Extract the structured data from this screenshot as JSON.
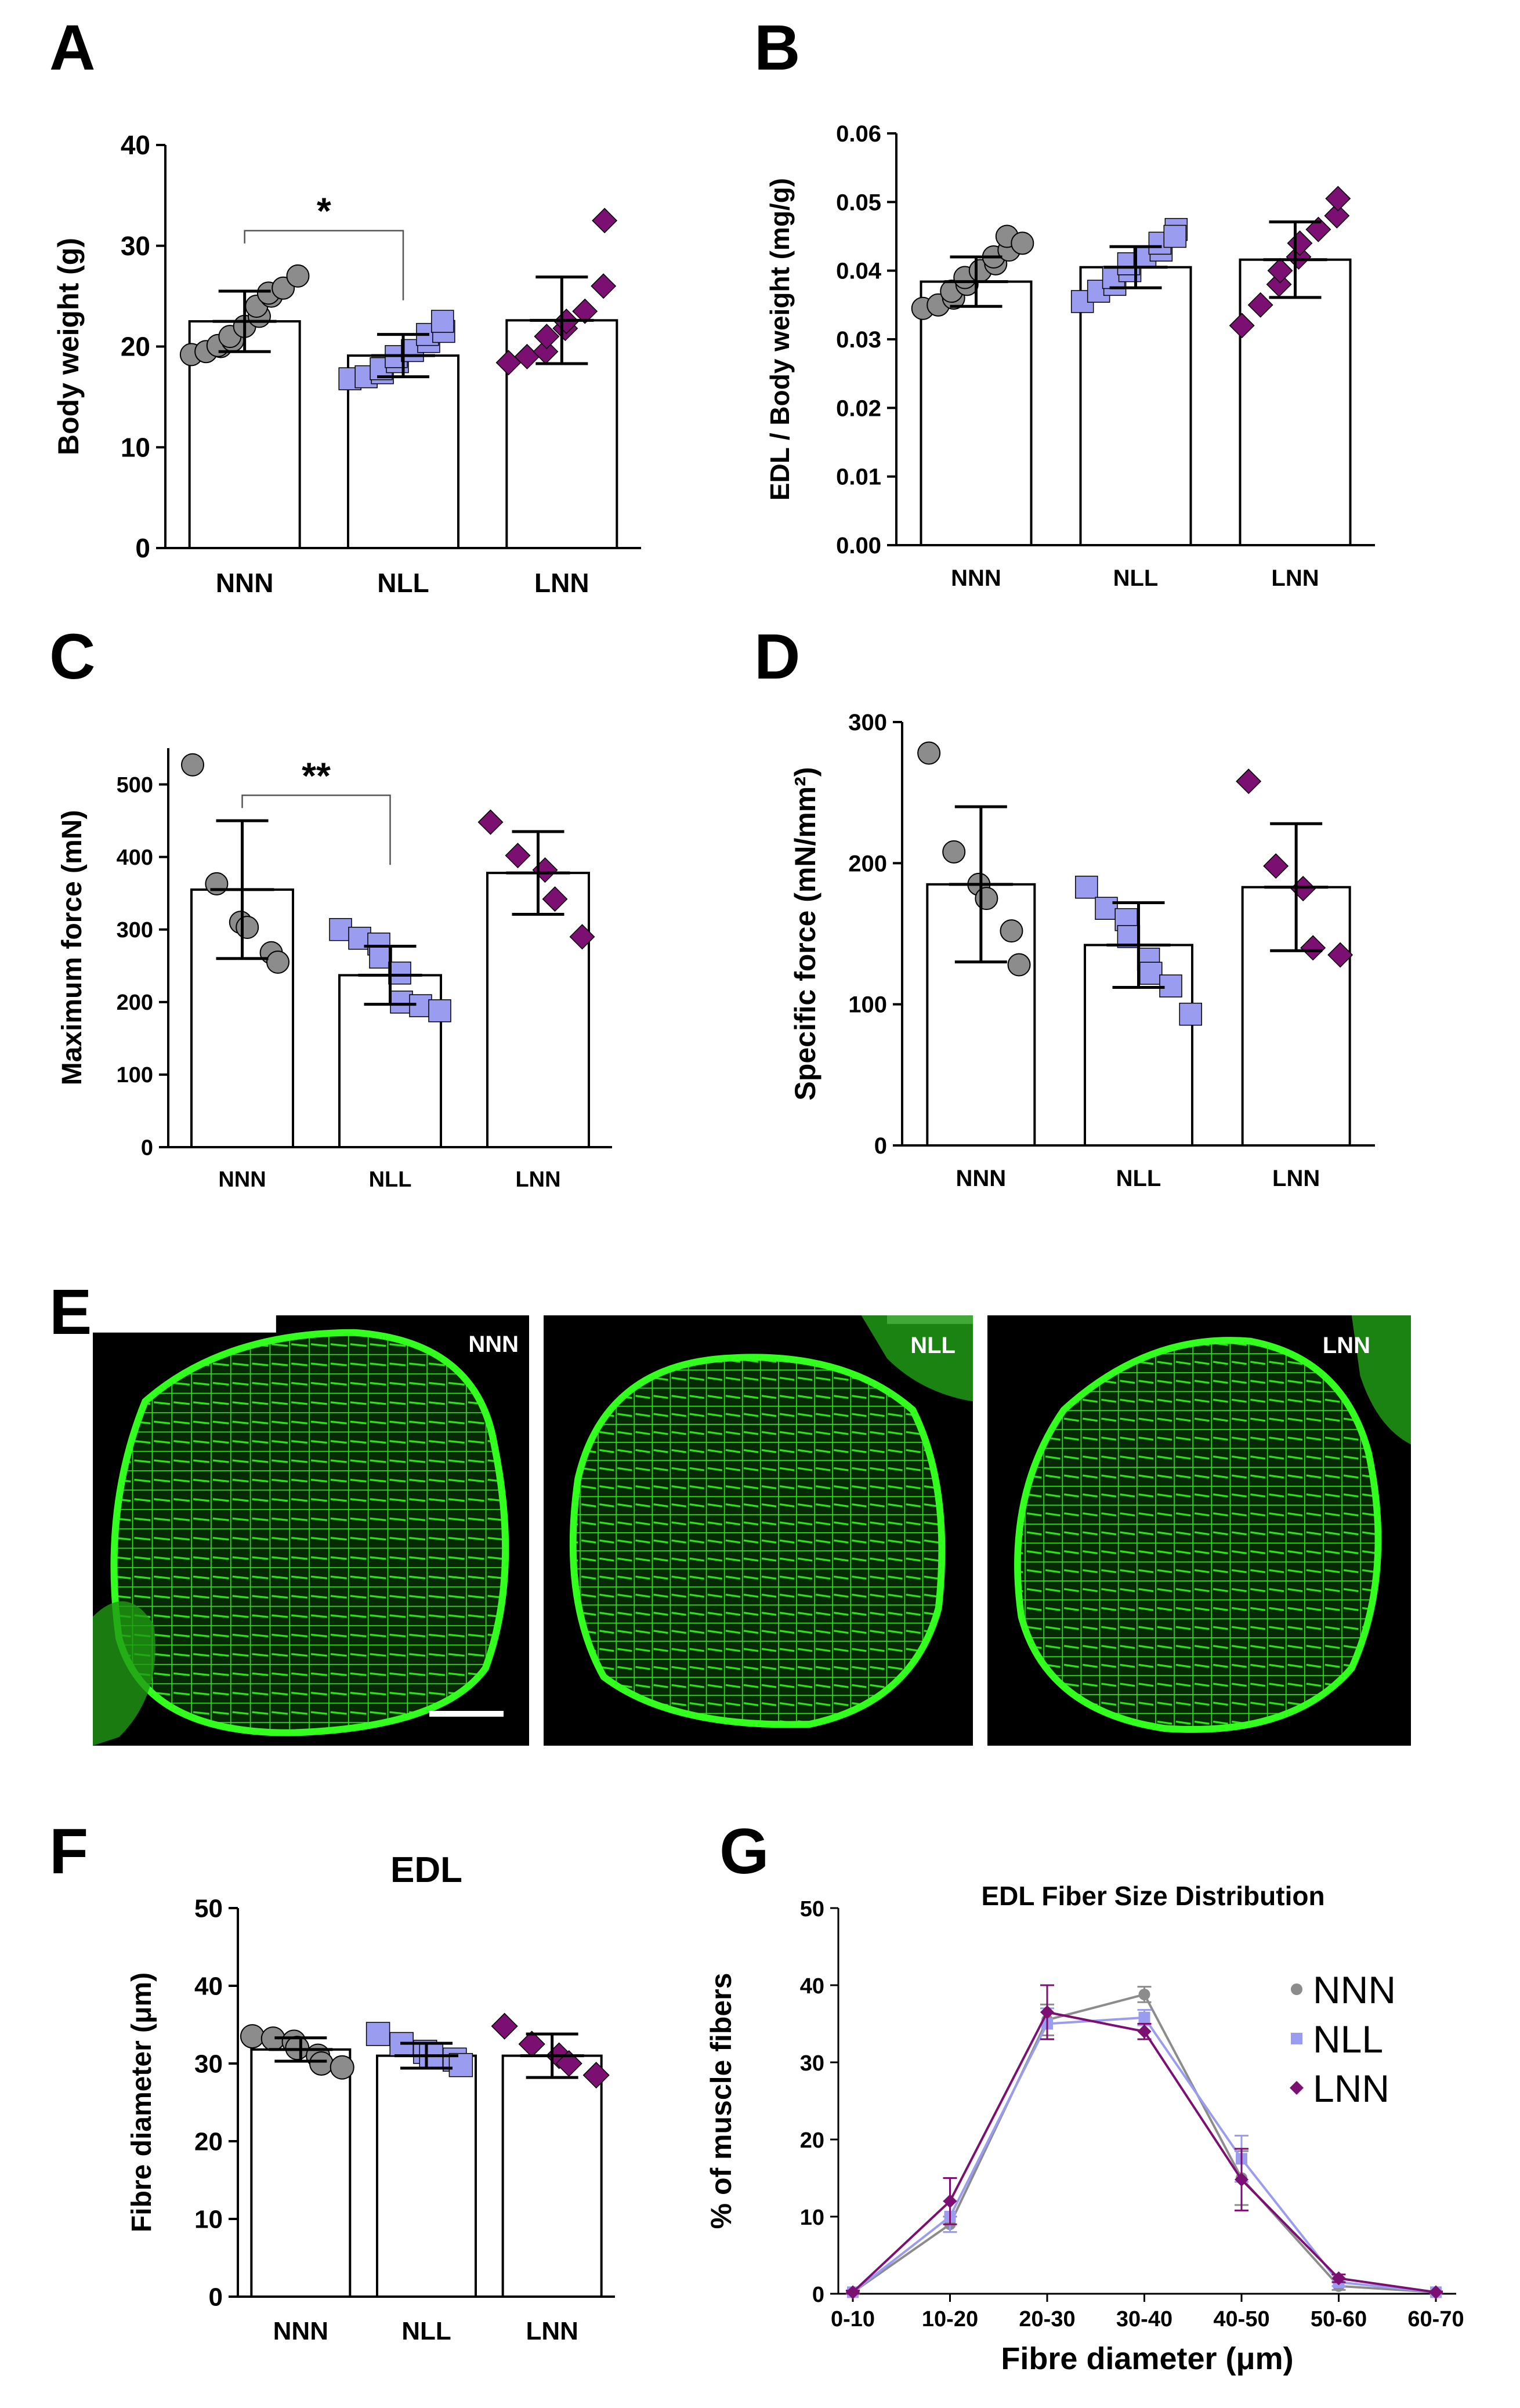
{
  "panel_letters": [
    "A",
    "B",
    "C",
    "D",
    "E",
    "F",
    "G"
  ],
  "colors": {
    "NNN": "#8c8c8c",
    "NLL": "#9a9cf0",
    "LNN": "#7b0f72",
    "stain": "#22e010"
  },
  "markers": {
    "NNN": "circle",
    "NLL": "square",
    "LNN": "diamond"
  },
  "micrographs": {
    "labels": [
      "NNN",
      "NLL",
      "LNN"
    ],
    "scale_bar": true
  },
  "chart_data": [
    {
      "panel": "A",
      "type": "bar",
      "ylabel": "Body weight (g)",
      "xlabel": "",
      "categories": [
        "NNN",
        "NLL",
        "LNN"
      ],
      "ylim": [
        0,
        40
      ],
      "yticks": [
        0,
        10,
        20,
        30,
        40
      ],
      "means": [
        22.5,
        19.1,
        22.6
      ],
      "sd": [
        3.0,
        2.1,
        4.3
      ],
      "points": [
        [
          19.2,
          19.5,
          20.0,
          20.1,
          20.6,
          21.0,
          22.0,
          23.0,
          24.0,
          25.0,
          25.3,
          25.8,
          27.0
        ],
        [
          16.8,
          17.0,
          17.4,
          17.8,
          18.5,
          19.0,
          19.6,
          20.5,
          21.2,
          21.5,
          22.5
        ],
        [
          18.4,
          19.0,
          19.5,
          21.0,
          21.8,
          22.5,
          23.5,
          26.0,
          32.5
        ]
      ],
      "significance": [
        {
          "from": 0,
          "to": 1,
          "label": "*",
          "y": 31.5
        }
      ]
    },
    {
      "panel": "B",
      "type": "bar",
      "ylabel": "EDL / Body weight (mg/g)",
      "xlabel": "",
      "categories": [
        "NNN",
        "NLL",
        "LNN"
      ],
      "ylim": [
        0,
        0.06
      ],
      "yticks": [
        "0.00",
        "0.01",
        "0.02",
        "0.03",
        "0.04",
        "0.05",
        "0.06"
      ],
      "means": [
        0.0384,
        0.0405,
        0.0416
      ],
      "sd": [
        0.0036,
        0.003,
        0.0055
      ],
      "points": [
        [
          0.0345,
          0.035,
          0.036,
          0.037,
          0.038,
          0.039,
          0.04,
          0.041,
          0.042,
          0.043,
          0.045,
          0.044
        ],
        [
          0.0355,
          0.037,
          0.038,
          0.039,
          0.04,
          0.041,
          0.042,
          0.043,
          0.044,
          0.046,
          0.045
        ],
        [
          0.032,
          0.035,
          0.038,
          0.04,
          0.042,
          0.044,
          0.046,
          0.048,
          0.0505
        ]
      ],
      "significance": []
    },
    {
      "panel": "C",
      "type": "bar",
      "ylabel": "Maximum force (mN)",
      "xlabel": "",
      "categories": [
        "NNN",
        "NLL",
        "LNN"
      ],
      "ylim": [
        0,
        550
      ],
      "yticks": [
        0,
        100,
        200,
        300,
        400,
        500
      ],
      "means": [
        355,
        237,
        378
      ],
      "sd": [
        95,
        40,
        57
      ],
      "points": [
        [
          527,
          363,
          310,
          303,
          268,
          255
        ],
        [
          300,
          288,
          280,
          262,
          240,
          200,
          195,
          188
        ],
        [
          448,
          402,
          382,
          342,
          290
        ]
      ],
      "significance": [
        {
          "from": 0,
          "to": 1,
          "label": "**",
          "y": 485
        }
      ]
    },
    {
      "panel": "D",
      "type": "bar",
      "ylabel": "Specific force (mN/mm²)",
      "xlabel": "",
      "categories": [
        "NNN",
        "NLL",
        "LNN"
      ],
      "ylim": [
        0,
        300
      ],
      "yticks": [
        0,
        100,
        200,
        300
      ],
      "means": [
        185,
        142,
        183
      ],
      "sd": [
        55,
        30,
        45
      ],
      "points": [
        [
          278,
          208,
          185,
          175,
          152,
          128
        ],
        [
          183,
          168,
          160,
          148,
          132,
          122,
          113,
          93
        ],
        [
          258,
          198,
          182,
          140,
          135
        ]
      ],
      "significance": []
    },
    {
      "panel": "F",
      "type": "bar",
      "title": "EDL",
      "ylabel": "Fibre diameter (μm)",
      "xlabel": "",
      "categories": [
        "NNN",
        "NLL",
        "LNN"
      ],
      "ylim": [
        0,
        50
      ],
      "yticks": [
        0,
        10,
        20,
        30,
        40,
        50
      ],
      "means": [
        31.8,
        31.0,
        31.0
      ],
      "sd": [
        1.5,
        1.6,
        2.8
      ],
      "points": [
        [
          33.5,
          33.2,
          32.8,
          32.0,
          31.0,
          30.0,
          29.5
        ],
        [
          33.8,
          32.5,
          31.5,
          31.0,
          30.5,
          29.8
        ],
        [
          34.8,
          32.5,
          31.0,
          30.0,
          28.5
        ]
      ],
      "significance": []
    },
    {
      "panel": "G",
      "type": "line",
      "title": "EDL Fiber Size Distribution",
      "xlabel": "Fibre diameter (μm)",
      "ylabel": "% of muscle fibers",
      "categories": [
        "0-10",
        "10-20",
        "20-30",
        "30-40",
        "40-50",
        "50-60",
        "60-70"
      ],
      "ylim": [
        0,
        50
      ],
      "yticks": [
        0,
        10,
        20,
        30,
        40,
        50
      ],
      "series": [
        {
          "name": "NNN",
          "values": [
            0.2,
            9.0,
            35.5,
            38.8,
            15.0,
            1.0,
            0.2
          ],
          "err": [
            0.2,
            1.0,
            2.0,
            1.0,
            3.5,
            0.5,
            0.1
          ]
        },
        {
          "name": "NLL",
          "values": [
            0.2,
            10.0,
            35.0,
            35.8,
            17.5,
            1.5,
            0.2
          ],
          "err": [
            0.2,
            2.0,
            2.0,
            1.0,
            3.0,
            0.5,
            0.1
          ]
        },
        {
          "name": "LNN",
          "values": [
            0.2,
            12.0,
            36.5,
            34.0,
            14.8,
            2.0,
            0.2
          ],
          "err": [
            0.2,
            3.0,
            3.5,
            1.0,
            4.0,
            0.5,
            0.1
          ]
        }
      ]
    }
  ]
}
